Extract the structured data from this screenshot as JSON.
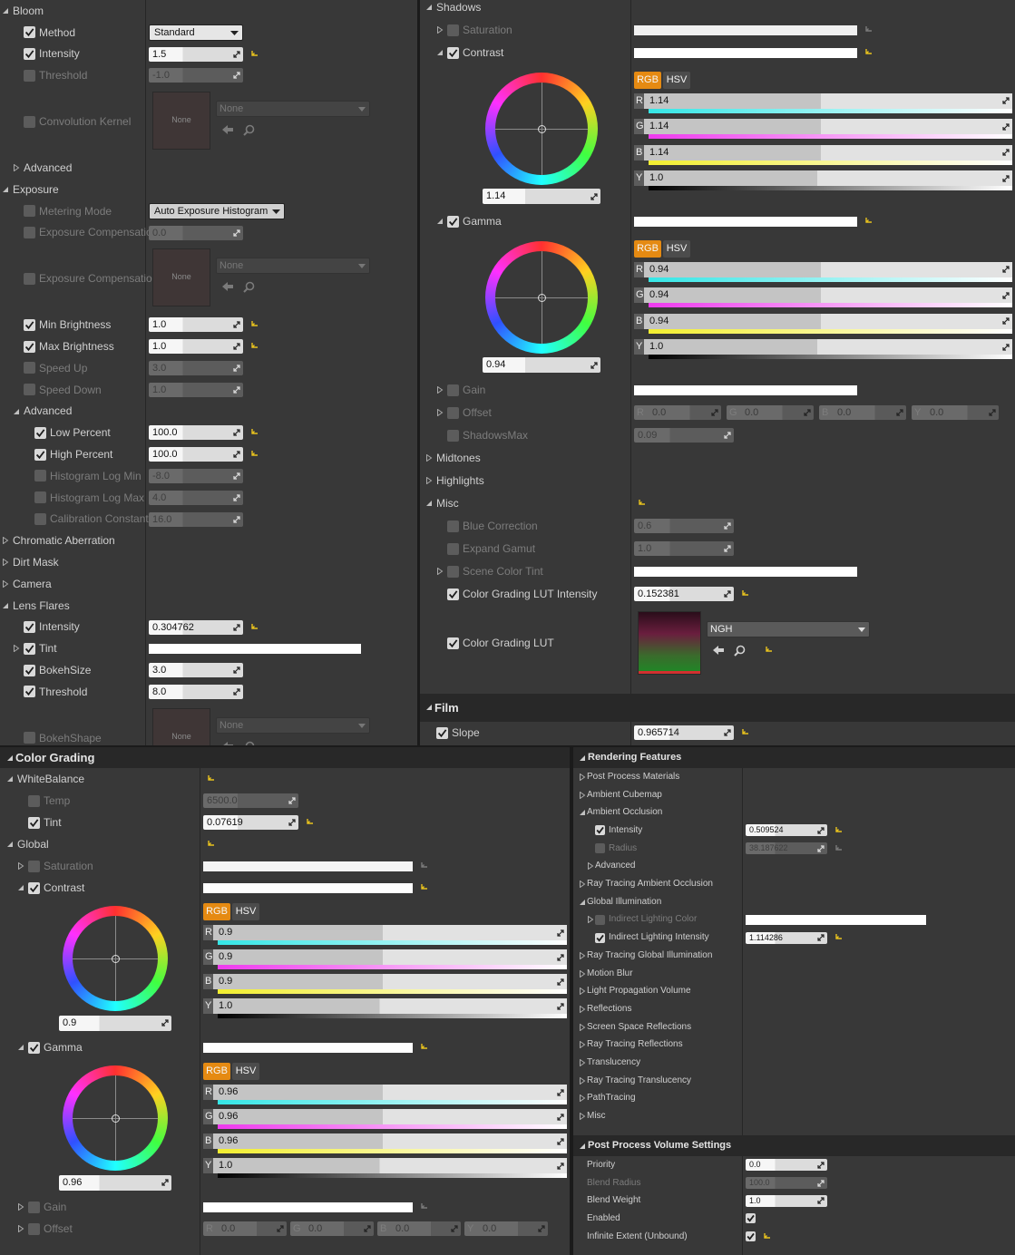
{
  "panels": [
    {
      "rows": [
        {
          "label": "Bloom",
          "expanded": true,
          "children": [
            {
              "label": "Method",
              "checked": true,
              "dropdown": "Standard"
            },
            {
              "label": "Intensity",
              "checked": true,
              "value": "1.5",
              "reset": true
            },
            {
              "label": "Threshold",
              "checked": false,
              "enabled": false,
              "value": "-1.0"
            },
            {
              "label": "Convolution Kernel",
              "checked": false,
              "enabled": false,
              "texture": "None",
              "asset": "None"
            },
            {
              "label": "Advanced",
              "expanded": false
            }
          ]
        },
        {
          "label": "Exposure",
          "expanded": true,
          "children": [
            {
              "label": "Metering Mode",
              "checked": false,
              "enabled": false,
              "dropdown": "Auto Exposure Histogram"
            },
            {
              "label": "Exposure Compensatio",
              "checked": false,
              "enabled": false,
              "value": "0.0"
            },
            {
              "label": "Exposure Compensatio",
              "checked": false,
              "enabled": false,
              "texture": "None",
              "asset": "None"
            },
            {
              "label": "Min Brightness",
              "checked": true,
              "value": "1.0",
              "reset": true
            },
            {
              "label": "Max Brightness",
              "checked": true,
              "value": "1.0",
              "reset": true
            },
            {
              "label": "Speed Up",
              "checked": false,
              "enabled": false,
              "value": "3.0"
            },
            {
              "label": "Speed Down",
              "checked": false,
              "enabled": false,
              "value": "1.0"
            },
            {
              "label": "Advanced",
              "expanded": true,
              "children": [
                {
                  "label": "Low Percent",
                  "checked": true,
                  "value": "100.0",
                  "reset": true
                },
                {
                  "label": "High Percent",
                  "checked": true,
                  "value": "100.0",
                  "reset": true
                },
                {
                  "label": "Histogram Log Min",
                  "checked": false,
                  "enabled": false,
                  "value": "-8.0"
                },
                {
                  "label": "Histogram Log Max",
                  "checked": false,
                  "enabled": false,
                  "value": "4.0"
                },
                {
                  "label": "Calibration Constant",
                  "checked": false,
                  "enabled": false,
                  "value": "16.0"
                }
              ]
            }
          ]
        },
        {
          "label": "Chromatic Aberration",
          "expanded": false
        },
        {
          "label": "Dirt Mask",
          "expanded": false
        },
        {
          "label": "Camera",
          "expanded": false
        },
        {
          "label": "Lens Flares",
          "expanded": true,
          "children": [
            {
              "label": "Intensity",
              "checked": true,
              "value": "0.304762",
              "reset": true
            },
            {
              "label": "Tint",
              "checked": true,
              "expanded": false,
              "color": "#ffffff"
            },
            {
              "label": "BokehSize",
              "checked": true,
              "value": "3.0"
            },
            {
              "label": "Threshold",
              "checked": true,
              "value": "8.0"
            },
            {
              "label": "BokehShape",
              "checked": false,
              "enabled": false,
              "texture": "None",
              "asset": "None"
            }
          ]
        }
      ]
    },
    {
      "rows": [
        {
          "label": "Shadows",
          "expanded": true,
          "children": [
            {
              "label": "Saturation",
              "checked": false,
              "enabled": false,
              "expanded": false,
              "color": "#f0f0f0",
              "reset": true
            },
            {
              "label": "Contrast",
              "checked": true,
              "expanded": true,
              "color": "#ffffff",
              "reset": true,
              "wheel": {
                "value": "1.14",
                "modes": [
                  "RGB",
                  "HSV"
                ],
                "channels": [
                  {
                    "label": "R",
                    "value": "1.14"
                  },
                  {
                    "label": "G",
                    "value": "1.14"
                  },
                  {
                    "label": "B",
                    "value": "1.14"
                  },
                  {
                    "label": "Y",
                    "value": "1.0"
                  }
                ]
              }
            },
            {
              "label": "Gamma",
              "checked": true,
              "expanded": true,
              "color": "#ffffff",
              "reset": true,
              "wheel": {
                "value": "0.94",
                "modes": [
                  "RGB",
                  "HSV"
                ],
                "channels": [
                  {
                    "label": "R",
                    "value": "0.94"
                  },
                  {
                    "label": "G",
                    "value": "0.94"
                  },
                  {
                    "label": "B",
                    "value": "0.94"
                  },
                  {
                    "label": "Y",
                    "value": "1.0"
                  }
                ]
              }
            },
            {
              "label": "Gain",
              "checked": false,
              "enabled": false,
              "expanded": false,
              "color": "#ffffff"
            },
            {
              "label": "Offset",
              "checked": false,
              "enabled": false,
              "expanded": false,
              "vector": [
                {
                  "label": "R",
                  "value": "0.0"
                },
                {
                  "label": "G",
                  "value": "0.0"
                },
                {
                  "label": "B",
                  "value": "0.0"
                },
                {
                  "label": "Y",
                  "value": "0.0"
                }
              ]
            },
            {
              "label": "ShadowsMax",
              "checked": false,
              "enabled": false,
              "value": "0.09"
            }
          ]
        },
        {
          "label": "Midtones",
          "expanded": false
        },
        {
          "label": "Highlights",
          "expanded": false
        },
        {
          "label": "Misc",
          "expanded": true,
          "reset": true,
          "children": [
            {
              "label": "Blue Correction",
              "checked": false,
              "enabled": false,
              "value": "0.6"
            },
            {
              "label": "Expand Gamut",
              "checked": false,
              "enabled": false,
              "value": "1.0"
            },
            {
              "label": "Scene Color Tint",
              "checked": false,
              "enabled": false,
              "expanded": false,
              "color": "#ffffff"
            },
            {
              "label": "Color Grading LUT Intensity",
              "checked": true,
              "value": "0.152381",
              "reset": true
            },
            {
              "label": "Color Grading LUT",
              "checked": true,
              "asset": "NGH",
              "reset": true
            }
          ]
        },
        {
          "label": "Film",
          "category": true,
          "children": [
            {
              "label": "Slope",
              "checked": true,
              "value": "0.965714",
              "reset": true
            }
          ]
        }
      ]
    },
    {
      "rows": [
        {
          "label": "Color Grading",
          "category": true,
          "children": [
            {
              "label": "WhiteBalance",
              "expanded": true,
              "reset": true,
              "children": [
                {
                  "label": "Temp",
                  "checked": false,
                  "enabled": false,
                  "value": "6500.0"
                },
                {
                  "label": "Tint",
                  "checked": true,
                  "value": "0.07619",
                  "reset": true
                }
              ]
            },
            {
              "label": "Global",
              "expanded": true,
              "reset": true,
              "children": [
                {
                  "label": "Saturation",
                  "checked": false,
                  "enabled": false,
                  "expanded": false,
                  "color": "#f4f4f4",
                  "reset": true
                },
                {
                  "label": "Contrast",
                  "checked": true,
                  "expanded": true,
                  "color": "#ffffff",
                  "reset": true,
                  "wheel": {
                    "value": "0.9",
                    "modes": [
                      "RGB",
                      "HSV"
                    ],
                    "channels": [
                      {
                        "label": "R",
                        "value": "0.9"
                      },
                      {
                        "label": "G",
                        "value": "0.9"
                      },
                      {
                        "label": "B",
                        "value": "0.9"
                      },
                      {
                        "label": "Y",
                        "value": "1.0"
                      }
                    ]
                  }
                },
                {
                  "label": "Gamma",
                  "checked": true,
                  "expanded": true,
                  "color": "#ffffff",
                  "reset": true,
                  "wheel": {
                    "value": "0.96",
                    "modes": [
                      "RGB",
                      "HSV"
                    ],
                    "channels": [
                      {
                        "label": "R",
                        "value": "0.96"
                      },
                      {
                        "label": "G",
                        "value": "0.96"
                      },
                      {
                        "label": "B",
                        "value": "0.96"
                      },
                      {
                        "label": "Y",
                        "value": "1.0"
                      }
                    ]
                  }
                },
                {
                  "label": "Gain",
                  "checked": false,
                  "enabled": false,
                  "expanded": false,
                  "color": "#ffffff",
                  "reset": true
                },
                {
                  "label": "Offset",
                  "checked": false,
                  "enabled": false,
                  "expanded": false,
                  "vector": [
                    {
                      "label": "R",
                      "value": "0.0"
                    },
                    {
                      "label": "G",
                      "value": "0.0"
                    },
                    {
                      "label": "B",
                      "value": "0.0"
                    },
                    {
                      "label": "Y",
                      "value": "0.0"
                    }
                  ]
                }
              ]
            }
          ]
        }
      ]
    },
    {
      "rows": [
        {
          "label": "Rendering Features",
          "category": true,
          "children": [
            {
              "label": "Post Process Materials",
              "expanded": false
            },
            {
              "label": "Ambient Cubemap",
              "expanded": false
            },
            {
              "label": "Ambient Occlusion",
              "expanded": true,
              "children": [
                {
                  "label": "Intensity",
                  "checked": true,
                  "value": "0.509524",
                  "reset": true
                },
                {
                  "label": "Radius",
                  "checked": false,
                  "enabled": false,
                  "value": "38.187622",
                  "reset": true
                },
                {
                  "label": "Advanced",
                  "expanded": false
                }
              ]
            },
            {
              "label": "Ray Tracing Ambient Occlusion",
              "expanded": false
            },
            {
              "label": "Global Illumination",
              "expanded": true,
              "children": [
                {
                  "label": "Indirect Lighting Color",
                  "checked": false,
                  "enabled": false,
                  "expanded": false,
                  "color": "#ffffff"
                },
                {
                  "label": "Indirect Lighting Intensity",
                  "checked": true,
                  "value": "1.114286",
                  "reset": true
                }
              ]
            },
            {
              "label": "Ray Tracing Global Illumination",
              "expanded": false
            },
            {
              "label": "Motion Blur",
              "expanded": false
            },
            {
              "label": "Light Propagation Volume",
              "expanded": false
            },
            {
              "label": "Reflections",
              "expanded": false
            },
            {
              "label": "Screen Space Reflections",
              "expanded": false
            },
            {
              "label": "Ray Tracing Reflections",
              "expanded": false
            },
            {
              "label": "Translucency",
              "expanded": false
            },
            {
              "label": "Ray Tracing Translucency",
              "expanded": false
            },
            {
              "label": "PathTracing",
              "expanded": false
            },
            {
              "label": "Misc",
              "expanded": false
            }
          ]
        },
        {
          "label": "Post Process Volume Settings",
          "category": true,
          "children": [
            {
              "label": "Priority",
              "value": "0.0"
            },
            {
              "label": "Blend Radius",
              "enabled": false,
              "value": "100.0"
            },
            {
              "label": "Blend Weight",
              "value": "1.0"
            },
            {
              "label": "Enabled",
              "value": true
            },
            {
              "label": "Infinite Extent (Unbound)",
              "value": true,
              "reset": true
            }
          ]
        }
      ]
    }
  ]
}
